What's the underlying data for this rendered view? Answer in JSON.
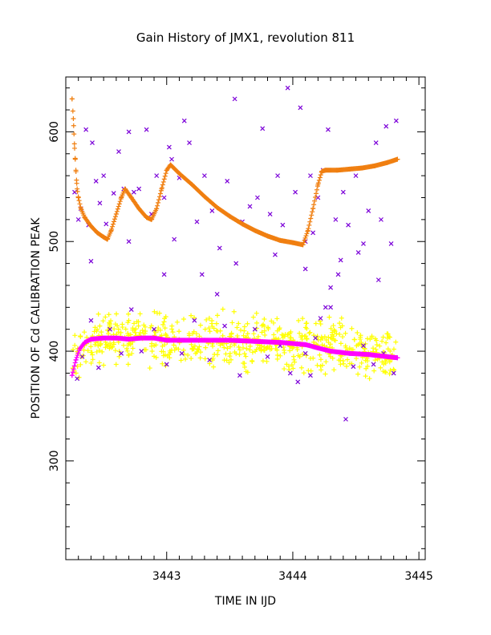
{
  "chart_data": {
    "type": "scatter",
    "title": "Gain History of JMX1, revolution 811",
    "xlabel": "TIME IN IJD",
    "ylabel": "POSITION OF Cd CALIBRATION PEAK",
    "xlim": [
      3442.2,
      3445.05
    ],
    "ylim": [
      210,
      650
    ],
    "x_ticks": [
      3443,
      3444,
      3445
    ],
    "y_ticks": [
      300,
      400,
      500,
      600
    ],
    "grid": false,
    "legend": "none",
    "series": [
      {
        "marker": "plus",
        "color": "#f07f10",
        "style": "dense",
        "points": [
          [
            3442.25,
            630
          ],
          [
            3442.26,
            612
          ],
          [
            3442.265,
            598
          ],
          [
            3442.27,
            585
          ],
          [
            3442.275,
            575
          ],
          [
            3442.28,
            565
          ],
          [
            3442.285,
            556
          ],
          [
            3442.29,
            548
          ],
          [
            3442.3,
            540
          ],
          [
            3442.32,
            530
          ],
          [
            3442.35,
            522
          ],
          [
            3442.4,
            514
          ],
          [
            3442.45,
            508
          ],
          [
            3442.5,
            504
          ],
          [
            3442.53,
            502
          ],
          [
            3442.56,
            510
          ],
          [
            3442.6,
            525
          ],
          [
            3442.64,
            540
          ],
          [
            3442.67,
            548
          ],
          [
            3442.72,
            540
          ],
          [
            3442.78,
            530
          ],
          [
            3442.84,
            522
          ],
          [
            3442.88,
            520
          ],
          [
            3442.92,
            530
          ],
          [
            3442.96,
            548
          ],
          [
            3443.0,
            565
          ],
          [
            3443.03,
            570
          ],
          [
            3443.1,
            562
          ],
          [
            3443.2,
            552
          ],
          [
            3443.3,
            541
          ],
          [
            3443.4,
            531
          ],
          [
            3443.5,
            523
          ],
          [
            3443.6,
            516
          ],
          [
            3443.7,
            510
          ],
          [
            3443.8,
            505
          ],
          [
            3443.9,
            501
          ],
          [
            3444.0,
            499
          ],
          [
            3444.08,
            497
          ],
          [
            3444.12,
            510
          ],
          [
            3444.16,
            530
          ],
          [
            3444.2,
            552
          ],
          [
            3444.23,
            564
          ],
          [
            3444.26,
            565
          ],
          [
            3444.35,
            565
          ],
          [
            3444.45,
            566
          ],
          [
            3444.55,
            567
          ],
          [
            3444.65,
            569
          ],
          [
            3444.75,
            572
          ],
          [
            3444.83,
            575
          ]
        ]
      },
      {
        "marker": "plus",
        "color": "#ff00ff",
        "style": "dense",
        "points": [
          [
            3442.25,
            378
          ],
          [
            3442.28,
            392
          ],
          [
            3442.31,
            402
          ],
          [
            3442.35,
            408
          ],
          [
            3442.4,
            411
          ],
          [
            3442.5,
            412
          ],
          [
            3442.6,
            412
          ],
          [
            3442.7,
            411
          ],
          [
            3442.8,
            412
          ],
          [
            3442.9,
            412
          ],
          [
            3443.0,
            410
          ],
          [
            3443.1,
            410
          ],
          [
            3443.3,
            410
          ],
          [
            3443.5,
            410
          ],
          [
            3443.7,
            409
          ],
          [
            3443.9,
            408
          ],
          [
            3444.1,
            406
          ],
          [
            3444.2,
            403
          ],
          [
            3444.3,
            400
          ],
          [
            3444.45,
            398
          ],
          [
            3444.6,
            397
          ],
          [
            3444.75,
            395
          ],
          [
            3444.83,
            394
          ]
        ]
      },
      {
        "marker": "plus",
        "color": "#ffff00",
        "style": "scatter",
        "center": [
          [
            3442.25,
            395
          ],
          [
            3442.5,
            412
          ],
          [
            3442.8,
            412
          ],
          [
            3443.1,
            408
          ],
          [
            3443.4,
            410
          ],
          [
            3443.7,
            409
          ],
          [
            3444.0,
            405
          ],
          [
            3444.3,
            406
          ],
          [
            3444.55,
            402
          ],
          [
            3444.83,
            392
          ]
        ],
        "spread": 22,
        "count": 650
      },
      {
        "marker": "cross",
        "color": "#7b00d8",
        "style": "scatter",
        "points": [
          [
            3442.27,
            545
          ],
          [
            3442.3,
            520
          ],
          [
            3442.32,
            530
          ],
          [
            3442.36,
            602
          ],
          [
            3442.38,
            515
          ],
          [
            3442.41,
            590
          ],
          [
            3442.44,
            555
          ],
          [
            3442.47,
            535
          ],
          [
            3442.5,
            560
          ],
          [
            3442.52,
            516
          ],
          [
            3442.58,
            544
          ],
          [
            3442.62,
            582
          ],
          [
            3442.66,
            548
          ],
          [
            3442.7,
            600
          ],
          [
            3442.74,
            545
          ],
          [
            3442.78,
            548
          ],
          [
            3442.84,
            602
          ],
          [
            3442.88,
            525
          ],
          [
            3442.92,
            560
          ],
          [
            3442.98,
            540
          ],
          [
            3443.02,
            586
          ],
          [
            3443.04,
            575
          ],
          [
            3443.06,
            502
          ],
          [
            3443.1,
            558
          ],
          [
            3443.14,
            610
          ],
          [
            3443.18,
            590
          ],
          [
            3443.24,
            518
          ],
          [
            3443.3,
            560
          ],
          [
            3443.36,
            528
          ],
          [
            3443.42,
            494
          ],
          [
            3443.48,
            555
          ],
          [
            3443.54,
            630
          ],
          [
            3443.6,
            518
          ],
          [
            3443.66,
            532
          ],
          [
            3443.72,
            540
          ],
          [
            3443.76,
            603
          ],
          [
            3443.82,
            525
          ],
          [
            3443.88,
            560
          ],
          [
            3443.92,
            515
          ],
          [
            3443.96,
            640
          ],
          [
            3444.02,
            545
          ],
          [
            3444.06,
            622
          ],
          [
            3444.1,
            500
          ],
          [
            3444.14,
            560
          ],
          [
            3444.16,
            508
          ],
          [
            3444.2,
            540
          ],
          [
            3444.24,
            565
          ],
          [
            3444.28,
            602
          ],
          [
            3444.34,
            520
          ],
          [
            3444.4,
            545
          ],
          [
            3444.44,
            515
          ],
          [
            3444.5,
            560
          ],
          [
            3444.56,
            498
          ],
          [
            3444.6,
            528
          ],
          [
            3444.66,
            590
          ],
          [
            3444.7,
            520
          ],
          [
            3444.74,
            605
          ],
          [
            3444.78,
            498
          ],
          [
            3444.82,
            610
          ],
          [
            3442.29,
            375
          ],
          [
            3442.33,
            395
          ],
          [
            3442.4,
            428
          ],
          [
            3442.46,
            385
          ],
          [
            3442.55,
            420
          ],
          [
            3442.64,
            398
          ],
          [
            3442.72,
            438
          ],
          [
            3442.8,
            400
          ],
          [
            3442.9,
            420
          ],
          [
            3443.0,
            388
          ],
          [
            3443.12,
            398
          ],
          [
            3443.22,
            428
          ],
          [
            3443.34,
            392
          ],
          [
            3443.46,
            423
          ],
          [
            3443.58,
            378
          ],
          [
            3443.7,
            420
          ],
          [
            3443.8,
            395
          ],
          [
            3443.9,
            405
          ],
          [
            3443.98,
            380
          ],
          [
            3444.04,
            372
          ],
          [
            3444.1,
            398
          ],
          [
            3444.14,
            378
          ],
          [
            3444.18,
            412
          ],
          [
            3444.22,
            430
          ],
          [
            3444.26,
            440
          ],
          [
            3444.3,
            458
          ],
          [
            3444.36,
            470
          ],
          [
            3444.42,
            338
          ],
          [
            3444.48,
            386
          ],
          [
            3444.56,
            405
          ],
          [
            3444.64,
            388
          ],
          [
            3444.72,
            398
          ],
          [
            3444.8,
            380
          ],
          [
            3442.4,
            482
          ],
          [
            3442.7,
            500
          ],
          [
            3443.28,
            470
          ],
          [
            3443.55,
            480
          ],
          [
            3443.86,
            488
          ],
          [
            3444.1,
            475
          ],
          [
            3444.38,
            483
          ],
          [
            3444.52,
            490
          ],
          [
            3444.68,
            465
          ],
          [
            3443.4,
            452
          ],
          [
            3444.3,
            440
          ],
          [
            3442.98,
            470
          ]
        ]
      }
    ]
  }
}
